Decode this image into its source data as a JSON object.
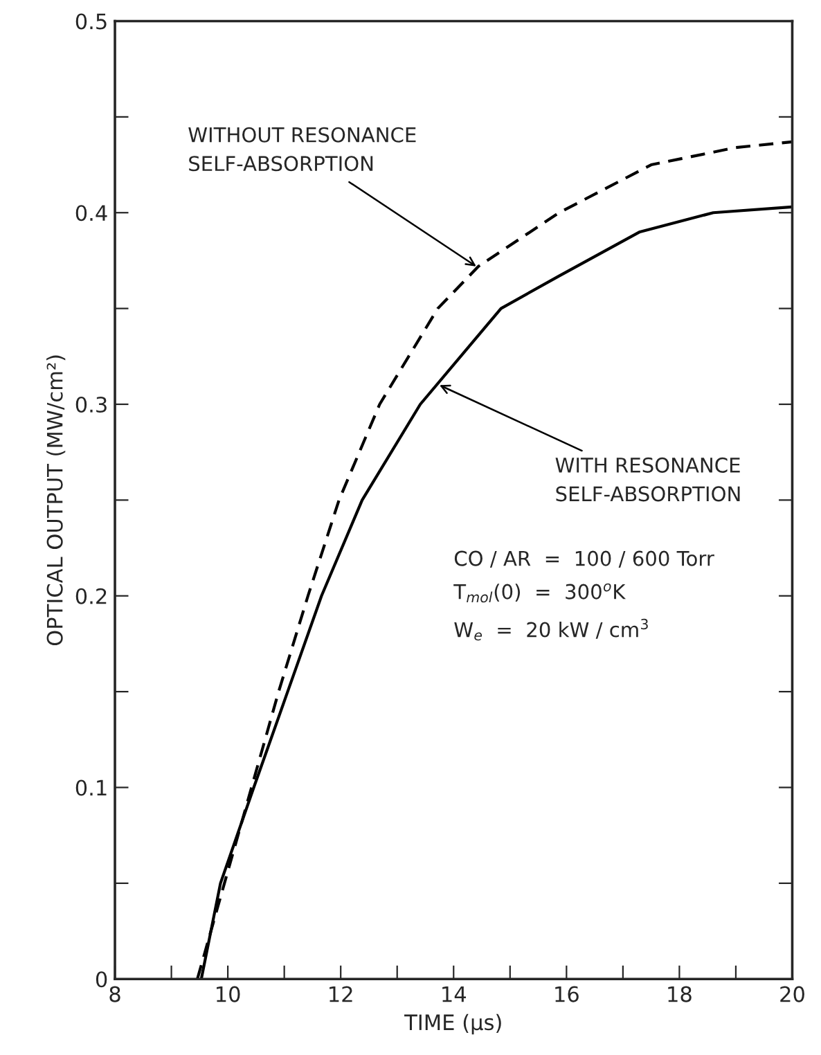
{
  "chart_data": {
    "type": "line",
    "xlabel": "TIME (μs)",
    "ylabel": "OPTICAL OUTPUT (MW/cm²)",
    "xlim": [
      8,
      20
    ],
    "ylim": [
      0,
      0.5
    ],
    "xticks": [
      8,
      {
        "value": 9,
        "label": null
      },
      10,
      {
        "value": 11,
        "label": null
      },
      12,
      {
        "value": 13,
        "label": null
      },
      14,
      {
        "value": 15,
        "label": null
      },
      16,
      {
        "value": 17,
        "label": null
      },
      18,
      {
        "value": 19,
        "label": null
      },
      20
    ],
    "yticks": [
      0,
      {
        "value": 0.05,
        "label": null
      },
      0.1,
      {
        "value": 0.15,
        "label": null
      },
      0.2,
      {
        "value": 0.25,
        "label": null
      },
      0.3,
      {
        "value": 0.35,
        "label": null
      },
      0.4,
      {
        "value": 0.45,
        "label": null
      },
      0.5
    ],
    "grid": false,
    "legend": false,
    "marker": "none",
    "series": [
      {
        "color": "#000000",
        "line_style": "dashed",
        "x": [
          9.46,
          9.94,
          10.42,
          10.9,
          11.42,
          11.97,
          12.69,
          13.72,
          14.44,
          15.87,
          17.5,
          19,
          20
        ],
        "values": [
          0,
          0.05,
          0.1,
          0.15,
          0.2,
          0.25,
          0.3,
          0.35,
          0.372,
          0.4,
          0.425,
          0.434,
          0.437
        ]
      },
      {
        "color": "#000000",
        "line_style": "solid",
        "x": [
          9.53,
          9.87,
          10.46,
          11.06,
          11.66,
          12.38,
          13.41,
          14.84,
          15.87,
          17.3,
          18.6,
          20
        ],
        "values": [
          0,
          0.05,
          0.1,
          0.15,
          0.2,
          0.25,
          0.3,
          0.35,
          0.367,
          0.39,
          0.4,
          0.403
        ]
      }
    ],
    "annotations": [
      {
        "text": "WITHOUT RESONANCE\nSELF-ABSORPTION",
        "x": 14.4,
        "y": 0.372
      },
      {
        "text": "WITH RESONANCE\nSELF-ABSORPTION",
        "x": 13.75,
        "y": 0.31
      },
      "CO / AR  =  100 / 600 Torr\nT$_{mol}$(0)  =  300$^{o}$K\nW$_{e}$  =  20 kW / cm$^{3}$"
    ]
  }
}
